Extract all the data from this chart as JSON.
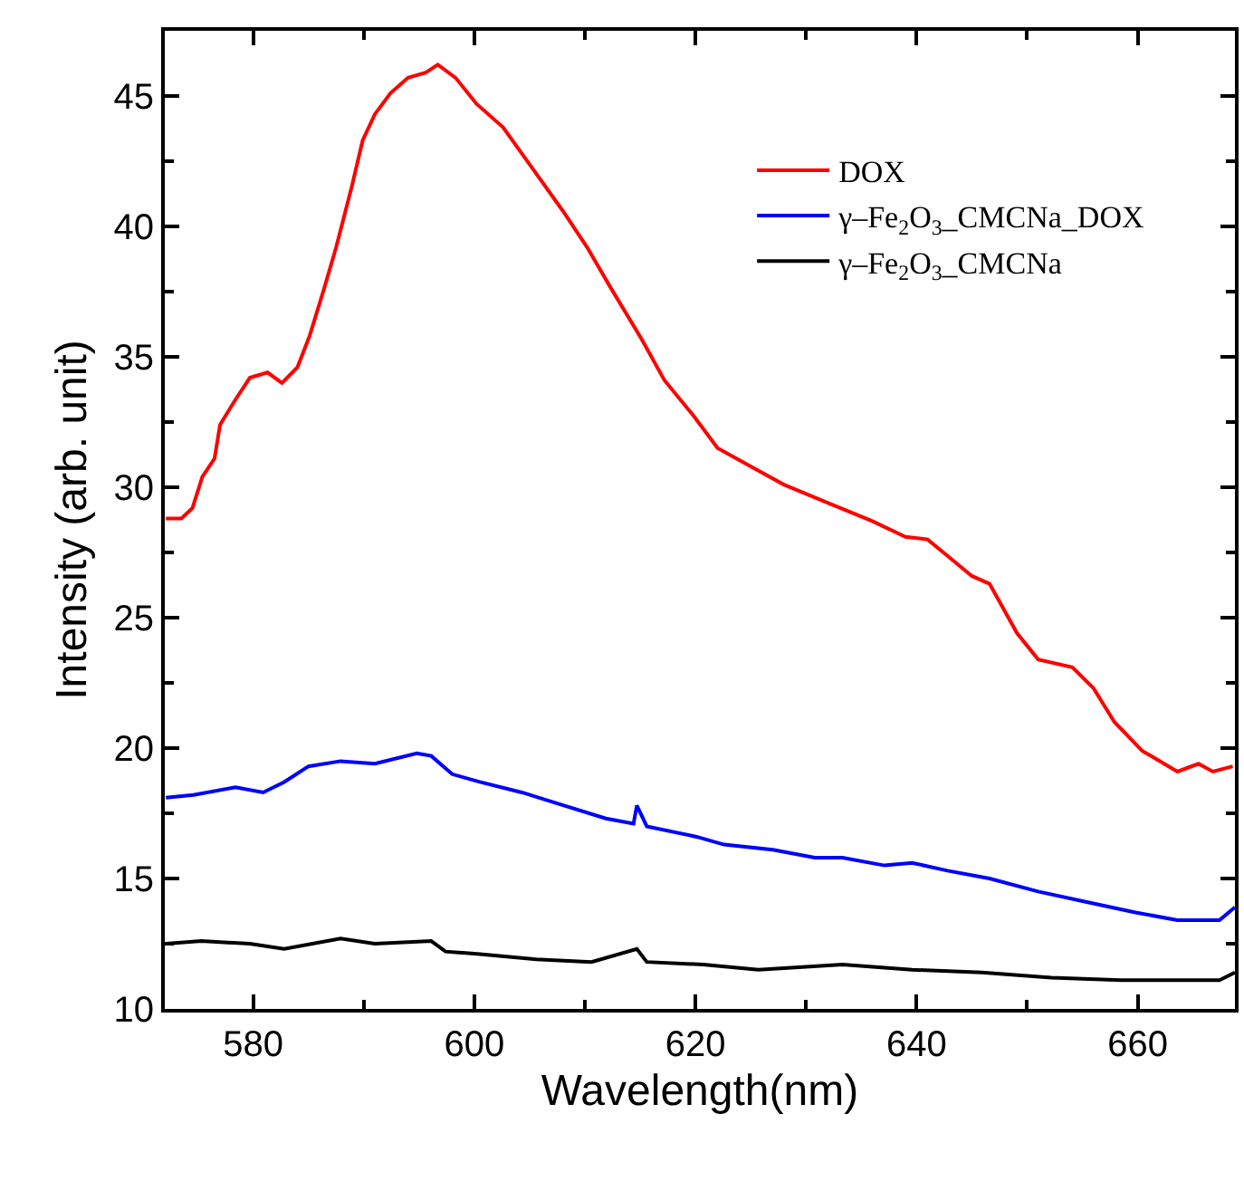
{
  "chart_data": {
    "type": "line",
    "xlabel": "Wavelength(nm)",
    "ylabel": "Intensity (arb. unit)",
    "xlim": [
      572,
      668.8
    ],
    "ylim": [
      10,
      47.5
    ],
    "xticks": [
      580,
      600,
      620,
      640,
      660
    ],
    "yticks": [
      10,
      15,
      20,
      25,
      30,
      35,
      40,
      45
    ],
    "legend": "top right",
    "marker": "none",
    "line_style": "solid",
    "series": [
      {
        "name": "DOX",
        "color": "#ff0000",
        "x": [
          572.1,
          573.5,
          574.5,
          575.4,
          576.5,
          577.0,
          578.3,
          579.7,
          581.3,
          582.6,
          584.0,
          585.1,
          586.4,
          587.5,
          588.9,
          589.9,
          591.0,
          592.4,
          594.0,
          595.6,
          596.7,
          598.3,
          600.2,
          602.6,
          605.3,
          608.0,
          610.2,
          612.4,
          615.1,
          617.2,
          619.9,
          622.0,
          625.0,
          628.0,
          632.0,
          636.0,
          639.0,
          641.0,
          643.0,
          645.0,
          646.6,
          649.1,
          651.0,
          654.1,
          656.0,
          657.9,
          660.4,
          663.6,
          665.5,
          666.8,
          668.6
        ],
        "values": [
          28.8,
          28.8,
          29.2,
          30.4,
          31.1,
          32.4,
          33.3,
          34.2,
          34.4,
          34.0,
          34.6,
          35.8,
          37.6,
          39.2,
          41.5,
          43.3,
          44.3,
          45.1,
          45.7,
          45.9,
          46.2,
          45.7,
          44.7,
          43.8,
          42.2,
          40.6,
          39.2,
          37.6,
          35.7,
          34.1,
          32.7,
          31.5,
          30.8,
          30.1,
          29.4,
          28.7,
          28.1,
          28.0,
          27.3,
          26.6,
          26.3,
          24.4,
          23.4,
          23.1,
          22.3,
          21.0,
          19.9,
          19.1,
          19.4,
          19.1,
          19.3
        ]
      },
      {
        "name": "γ–Fe$_{2}$O$_{3}$_CMCNa_DOX",
        "color": "#0000ff",
        "x": [
          572.1,
          574.6,
          578.4,
          580.9,
          582.8,
          585.0,
          587.9,
          591.0,
          594.8,
          596.1,
          598.0,
          600.5,
          604.3,
          608.1,
          611.9,
          614.4,
          614.7,
          615.6,
          620.1,
          622.6,
          627.0,
          630.8,
          633.3,
          637.1,
          639.6,
          642.8,
          646.6,
          651.0,
          655.4,
          659.8,
          663.6,
          667.4,
          668.8
        ],
        "values": [
          18.1,
          18.2,
          18.5,
          18.3,
          18.7,
          19.3,
          19.5,
          19.4,
          19.8,
          19.7,
          19.0,
          18.7,
          18.3,
          17.8,
          17.3,
          17.1,
          17.8,
          17.0,
          16.6,
          16.3,
          16.1,
          15.8,
          15.8,
          15.5,
          15.6,
          15.3,
          15.0,
          14.5,
          14.1,
          13.7,
          13.4,
          13.4,
          13.9
        ]
      },
      {
        "name": "γ–Fe$_{2}$O$_{3}$_CMCNa",
        "color": "#000000",
        "x": [
          572.1,
          575.3,
          579.7,
          582.8,
          587.9,
          591.0,
          596.1,
          597.4,
          600.5,
          605.6,
          610.6,
          614.7,
          615.6,
          620.7,
          625.7,
          633.3,
          639.6,
          645.9,
          652.2,
          658.5,
          663.6,
          667.4,
          668.8
        ],
        "values": [
          12.5,
          12.6,
          12.5,
          12.3,
          12.7,
          12.5,
          12.6,
          12.2,
          12.1,
          11.9,
          11.8,
          12.3,
          11.8,
          11.7,
          11.5,
          11.7,
          11.5,
          11.4,
          11.2,
          11.1,
          11.1,
          11.1,
          11.4
        ]
      }
    ]
  }
}
